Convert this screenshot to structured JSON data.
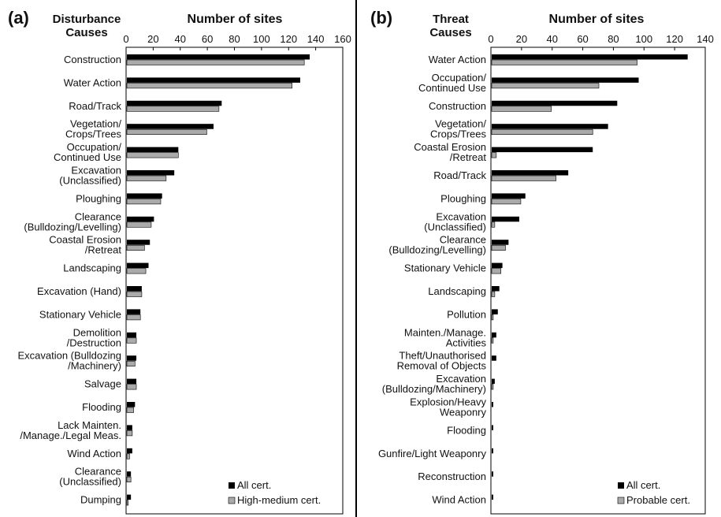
{
  "chart_data": [
    {
      "type": "bar",
      "orientation": "horizontal",
      "panel": "(a)",
      "title": [
        "Disturbance",
        "Causes"
      ],
      "xlabel": "Number of sites",
      "xlim": [
        0,
        160
      ],
      "xticks": [
        "0",
        "20",
        "40",
        "60",
        "80",
        "100",
        "120",
        "140",
        "160"
      ],
      "categories": [
        [
          "Construction"
        ],
        [
          "Water Action"
        ],
        [
          "Road/Track"
        ],
        [
          "Vegetation/",
          "Crops/Trees"
        ],
        [
          "Occupation/",
          "Continued Use"
        ],
        [
          "Excavation",
          "(Unclassified)"
        ],
        [
          "Ploughing"
        ],
        [
          "Clearance",
          "(Bulldozing/Levelling)"
        ],
        [
          "Coastal Erosion",
          "/Retreat"
        ],
        [
          "Landscaping"
        ],
        [
          "Excavation (Hand)"
        ],
        [
          "Stationary Vehicle"
        ],
        [
          "Demolition",
          "/Destruction"
        ],
        [
          "Excavation (Bulldozing",
          "/Machinery)"
        ],
        [
          "Salvage"
        ],
        [
          "Flooding"
        ],
        [
          "Lack Mainten.",
          "/Manage./Legal Meas."
        ],
        [
          "Wind Action"
        ],
        [
          "Clearance",
          "(Unclassified)"
        ],
        [
          "Dumping"
        ]
      ],
      "series": [
        {
          "name": "All cert.",
          "color": "#000000",
          "values": [
            135,
            128,
            70,
            64,
            38,
            35,
            26,
            20,
            17,
            16,
            11,
            10,
            7,
            7,
            7,
            6,
            4,
            4,
            3,
            3
          ]
        },
        {
          "name": "High-medium cert.",
          "color": "#aaaaaa",
          "values": [
            131,
            122,
            68,
            59,
            38,
            29,
            25,
            18,
            13,
            14,
            11,
            10,
            7,
            6,
            7,
            5,
            4,
            2,
            3,
            1
          ]
        }
      ],
      "legend_position": "bottom-right"
    },
    {
      "type": "bar",
      "orientation": "horizontal",
      "panel": "(b)",
      "title": [
        "Threat",
        "Causes"
      ],
      "xlabel": "Number of sites",
      "xlim": [
        0,
        140
      ],
      "xticks": [
        "0",
        "20",
        "40",
        "60",
        "80",
        "100",
        "120",
        "140"
      ],
      "categories": [
        [
          "Water Action"
        ],
        [
          "Occupation/",
          "Continued Use"
        ],
        [
          "Construction"
        ],
        [
          "Vegetation/",
          "Crops/Trees"
        ],
        [
          "Coastal Erosion",
          "/Retreat"
        ],
        [
          "Road/Track"
        ],
        [
          "Ploughing"
        ],
        [
          "Excavation",
          "(Unclassified)"
        ],
        [
          "Clearance",
          "(Bulldozing/Levelling)"
        ],
        [
          "Stationary Vehicle"
        ],
        [
          "Landscaping"
        ],
        [
          "Pollution"
        ],
        [
          "Mainten./Manage.",
          "Activities"
        ],
        [
          "Theft/Unauthorised",
          "Removal of Objects"
        ],
        [
          "Excavation",
          "(Bulldozing/Machinery)"
        ],
        [
          "Explosion/Heavy",
          "Weaponry"
        ],
        [
          "Flooding"
        ],
        [
          "Gunfire/Light Weaponry"
        ],
        [
          "Reconstruction"
        ],
        [
          "Wind Action"
        ]
      ],
      "series": [
        {
          "name": "All cert.",
          "color": "#000000",
          "values": [
            128,
            96,
            82,
            76,
            66,
            50,
            22,
            18,
            11,
            7,
            5,
            4,
            3,
            3,
            2,
            1,
            1,
            1,
            1,
            1
          ]
        },
        {
          "name": "Probable cert.",
          "color": "#aaaaaa",
          "values": [
            95,
            70,
            39,
            66,
            3,
            42,
            19,
            2,
            9,
            6,
            2,
            1,
            1,
            0,
            1,
            0,
            0,
            0,
            0,
            0
          ]
        }
      ],
      "legend_position": "bottom-right"
    }
  ]
}
